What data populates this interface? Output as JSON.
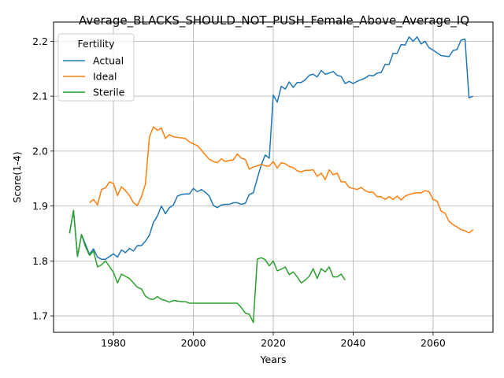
{
  "chart_data": {
    "type": "line",
    "title": "Average_BLACKS_SHOULD_NOT_PUSH_Female_Above_Average_IQ",
    "xlabel": "Years",
    "ylabel": "Score(1-4)",
    "xlim": [
      1965,
      2075
    ],
    "ylim": [
      1.67,
      2.235
    ],
    "xticks": [
      1980,
      2000,
      2020,
      2040,
      2060
    ],
    "yticks": [
      1.7,
      1.8,
      1.9,
      2.0,
      2.1,
      2.2
    ],
    "ytick_labels": [
      "1.7",
      "1.8",
      "1.9",
      "2.0",
      "2.1",
      "2.2"
    ],
    "grid": true,
    "legend": {
      "title": "Fertility",
      "placement": "top-left"
    },
    "series": [
      {
        "name": "Actual",
        "color": "#1f77b4",
        "x": [
          1969,
          1970,
          1971,
          1972,
          1973,
          1974,
          1975,
          1976,
          1977,
          1978,
          1979,
          1980,
          1981,
          1982,
          1983,
          1984,
          1985,
          1986,
          1987,
          1988,
          1989,
          1990,
          1991,
          1992,
          1993,
          1994,
          1995,
          1996,
          1997,
          1998,
          1999,
          2000,
          2001,
          2002,
          2003,
          2004,
          2005,
          2006,
          2007,
          2008,
          2009,
          2010,
          2011,
          2012,
          2013,
          2014,
          2015,
          2016,
          2017,
          2018,
          2019,
          2020,
          2021,
          2022,
          2023,
          2024,
          2025,
          2026,
          2027,
          2028,
          2029,
          2030,
          2031,
          2032,
          2033,
          2034,
          2035,
          2036,
          2037,
          2038,
          2039,
          2040,
          2041,
          2042,
          2043,
          2044,
          2045,
          2046,
          2047,
          2048,
          2049,
          2050,
          2051,
          2052,
          2053,
          2054,
          2055,
          2056,
          2057,
          2058,
          2059,
          2060,
          2061,
          2062,
          2063,
          2064,
          2065,
          2066,
          2067,
          2068,
          2069,
          2070
        ],
        "values": [
          1.85,
          1.892,
          1.808,
          1.848,
          1.83,
          1.812,
          1.822,
          1.807,
          1.803,
          1.803,
          1.808,
          1.813,
          1.807,
          1.82,
          1.815,
          1.823,
          1.818,
          1.828,
          1.828,
          1.836,
          1.847,
          1.87,
          1.882,
          1.9,
          1.886,
          1.897,
          1.902,
          1.918,
          1.921,
          1.922,
          1.922,
          1.932,
          1.926,
          1.93,
          1.925,
          1.918,
          1.901,
          1.897,
          1.902,
          1.903,
          1.903,
          1.906,
          1.906,
          1.903,
          1.905,
          1.921,
          1.924,
          1.95,
          1.975,
          1.993,
          1.987,
          2.102,
          2.089,
          2.118,
          2.113,
          2.126,
          2.116,
          2.125,
          2.125,
          2.13,
          2.138,
          2.14,
          2.135,
          2.147,
          2.14,
          2.142,
          2.145,
          2.138,
          2.136,
          2.123,
          2.127,
          2.123,
          2.127,
          2.13,
          2.133,
          2.138,
          2.137,
          2.142,
          2.143,
          2.158,
          2.158,
          2.178,
          2.178,
          2.194,
          2.193,
          2.208,
          2.2,
          2.208,
          2.195,
          2.2,
          2.188,
          2.184,
          2.179,
          2.174,
          2.173,
          2.172,
          2.183,
          2.185,
          2.202,
          2.204,
          2.097,
          2.1
        ]
      },
      {
        "name": "Ideal",
        "color": "#ff7f0e",
        "x": [
          1974,
          1975,
          1976,
          1977,
          1978,
          1979,
          1980,
          1981,
          1982,
          1983,
          1984,
          1985,
          1986,
          1987,
          1988,
          1989,
          1990,
          1991,
          1992,
          1993,
          1994,
          1995,
          1996,
          1997,
          1998,
          1999,
          2000,
          2001,
          2002,
          2003,
          2004,
          2005,
          2006,
          2007,
          2008,
          2009,
          2010,
          2011,
          2012,
          2013,
          2014,
          2015,
          2016,
          2017,
          2018,
          2019,
          2020,
          2021,
          2022,
          2023,
          2024,
          2025,
          2026,
          2027,
          2028,
          2029,
          2030,
          2031,
          2032,
          2033,
          2034,
          2035,
          2036,
          2037,
          2038,
          2039,
          2040,
          2041,
          2042,
          2043,
          2044,
          2045,
          2046,
          2047,
          2048,
          2049,
          2050,
          2051,
          2052,
          2053,
          2054,
          2055,
          2056,
          2057,
          2058,
          2059,
          2060,
          2061,
          2062,
          2063,
          2064,
          2065,
          2066,
          2067,
          2068,
          2069,
          2070
        ],
        "values": [
          1.906,
          1.912,
          1.902,
          1.93,
          1.933,
          1.944,
          1.941,
          1.919,
          1.935,
          1.928,
          1.919,
          1.906,
          1.901,
          1.917,
          1.94,
          2.026,
          2.044,
          2.038,
          2.042,
          2.023,
          2.03,
          2.026,
          2.025,
          2.024,
          2.023,
          2.017,
          2.013,
          2.01,
          2.002,
          1.993,
          1.985,
          1.981,
          1.979,
          1.986,
          1.981,
          1.983,
          1.984,
          1.995,
          1.987,
          1.985,
          1.967,
          1.971,
          1.973,
          1.976,
          1.973,
          1.973,
          1.981,
          1.969,
          1.979,
          1.977,
          1.972,
          1.97,
          1.964,
          1.962,
          1.965,
          1.965,
          1.966,
          1.954,
          1.96,
          1.948,
          1.966,
          1.957,
          1.96,
          1.944,
          1.944,
          1.934,
          1.932,
          1.93,
          1.934,
          1.928,
          1.925,
          1.925,
          1.917,
          1.917,
          1.912,
          1.917,
          1.912,
          1.918,
          1.911,
          1.918,
          1.921,
          1.923,
          1.924,
          1.924,
          1.928,
          1.926,
          1.912,
          1.909,
          1.891,
          1.887,
          1.872,
          1.866,
          1.862,
          1.857,
          1.855,
          1.851,
          1.857
        ]
      },
      {
        "name": "Sterile",
        "color": "#2ca02c",
        "x": [
          1969,
          1970,
          1971,
          1972,
          1973,
          1974,
          1975,
          1976,
          1977,
          1978,
          1979,
          1980,
          1981,
          1982,
          1983,
          1984,
          1985,
          1986,
          1987,
          1988,
          1989,
          1990,
          1991,
          1992,
          1993,
          1994,
          1995,
          1996,
          1997,
          1998,
          1999,
          2000,
          2001,
          2002,
          2003,
          2004,
          2005,
          2006,
          2007,
          2008,
          2009,
          2010,
          2011,
          2012,
          2013,
          2014,
          2015,
          2016,
          2017,
          2018,
          2019,
          2020,
          2021,
          2022,
          2023,
          2024,
          2025,
          2026,
          2027,
          2028,
          2029,
          2030,
          2031,
          2032,
          2033,
          2034,
          2035,
          2036,
          2037,
          2038
        ],
        "values": [
          1.85,
          1.892,
          1.808,
          1.848,
          1.826,
          1.81,
          1.818,
          1.789,
          1.793,
          1.8,
          1.79,
          1.779,
          1.76,
          1.776,
          1.772,
          1.768,
          1.76,
          1.752,
          1.749,
          1.736,
          1.731,
          1.73,
          1.735,
          1.73,
          1.728,
          1.725,
          1.728,
          1.727,
          1.726,
          1.726,
          1.723,
          1.723,
          1.723,
          1.723,
          1.723,
          1.723,
          1.723,
          1.723,
          1.723,
          1.723,
          1.723,
          1.723,
          1.723,
          1.715,
          1.705,
          1.703,
          1.688,
          1.803,
          1.806,
          1.802,
          1.791,
          1.8,
          1.782,
          1.785,
          1.789,
          1.775,
          1.78,
          1.771,
          1.76,
          1.765,
          1.772,
          1.786,
          1.768,
          1.786,
          1.78,
          1.789,
          1.771,
          1.771,
          1.776,
          1.765
        ]
      }
    ]
  }
}
